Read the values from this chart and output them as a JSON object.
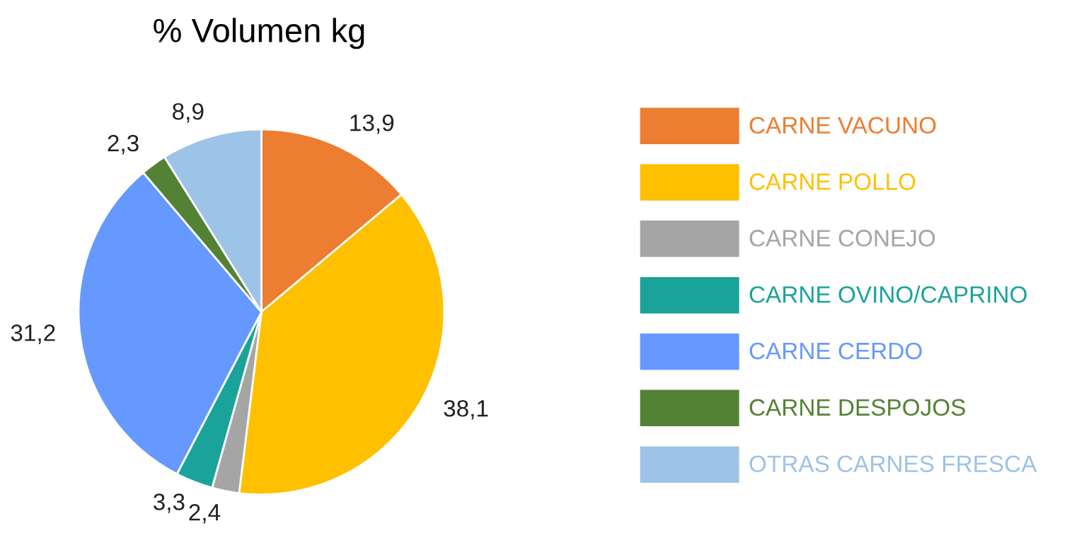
{
  "chart_data": {
    "type": "pie",
    "title": "% Volumen kg",
    "categories": [
      "CARNE VACUNO",
      "CARNE POLLO",
      "CARNE CONEJO",
      "CARNE OVINO/CAPRINO",
      "CARNE CERDO",
      "CARNE DESPOJOS",
      "OTRAS CARNES FRESCA"
    ],
    "values": [
      13.9,
      38.1,
      2.4,
      3.3,
      31.2,
      2.3,
      8.9
    ],
    "value_labels": [
      "13,9",
      "38,1",
      "2,4",
      "3,3",
      "31,2",
      "2,3",
      "8,9"
    ],
    "colors": [
      "#ed7d31",
      "#ffc000",
      "#a5a5a5",
      "#1aa39a",
      "#6699ff",
      "#548235",
      "#9dc3e6"
    ],
    "legend": "right"
  }
}
